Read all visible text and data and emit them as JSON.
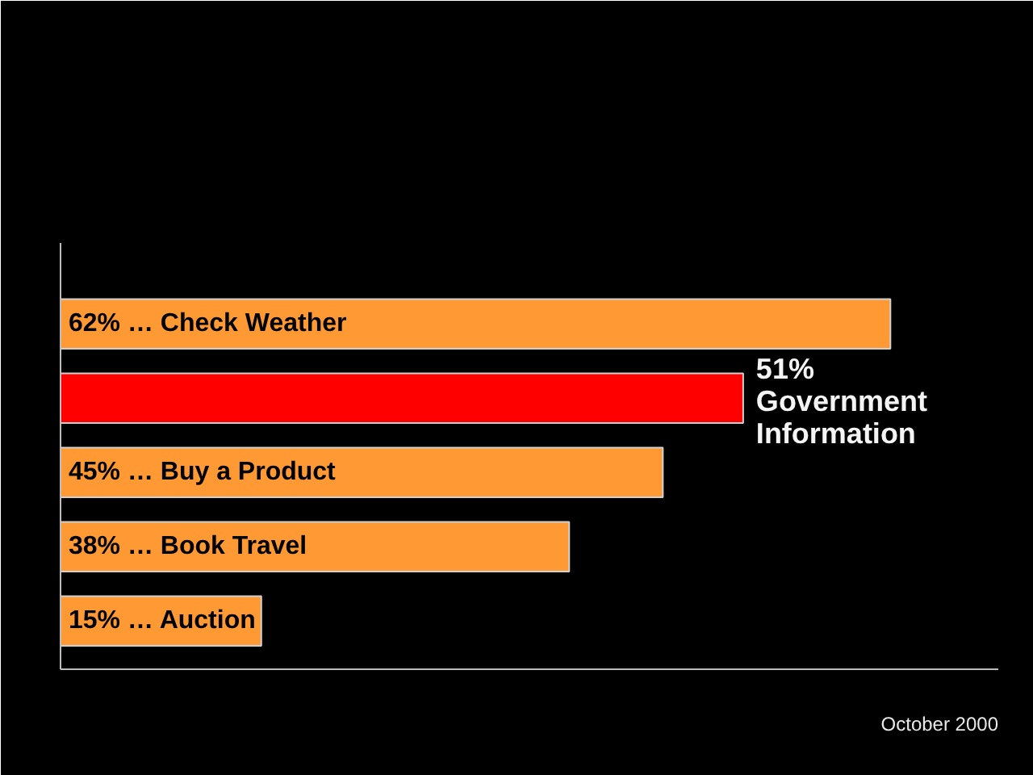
{
  "chart_data": {
    "type": "bar",
    "orientation": "horizontal",
    "categories": [
      null,
      null,
      null,
      null,
      null
    ],
    "values": [
      62,
      51,
      45,
      38,
      15
    ],
    "colors": [
      "#ff9933",
      "#ff0000",
      "#ff9933",
      "#ff9933",
      "#ff9933"
    ],
    "value_labels": [
      "62% … Check Weather",
      "51% Government Information",
      "45% … Buy a Product",
      "38% … Book Travel",
      "15% … Auction"
    ],
    "annotations": [
      "October 2000"
    ]
  }
}
